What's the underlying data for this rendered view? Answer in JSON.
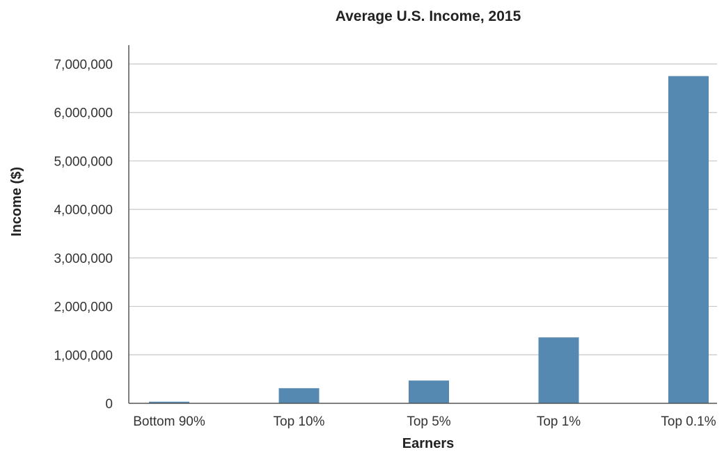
{
  "chart_data": {
    "type": "bar",
    "title": "Average U.S. Income, 2015",
    "xlabel": "Earners",
    "ylabel": "Income ($)",
    "categories": [
      "Bottom 90%",
      "Top 10%",
      "Top 5%",
      "Top 1%",
      "Top 0.1%"
    ],
    "values": [
      33000,
      312000,
      470000,
      1360000,
      6750000
    ],
    "ylim": [
      0,
      7000000
    ],
    "yticks": [
      0,
      1000000,
      2000000,
      3000000,
      4000000,
      5000000,
      6000000,
      7000000
    ],
    "ytick_labels": [
      "0",
      "1,000,000",
      "2,000,000",
      "3,000,000",
      "4,000,000",
      "5,000,000",
      "6,000,000",
      "7,000,000"
    ],
    "grid": true,
    "bar_color": "#5589b2"
  }
}
